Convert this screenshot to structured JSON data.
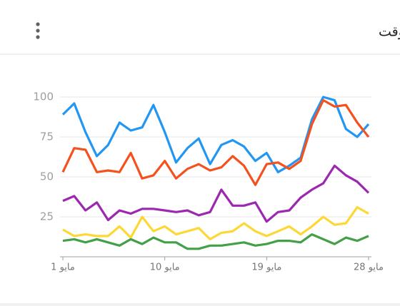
{
  "chart_data": {
    "type": "line",
    "title": "مستوى الاهتمام على مدار الوقت",
    "categories": [
      "1 مايو",
      null,
      null,
      null,
      null,
      null,
      null,
      null,
      null,
      "10 مايو",
      null,
      null,
      null,
      null,
      null,
      null,
      null,
      null,
      "19 مايو",
      null,
      null,
      null,
      null,
      null,
      null,
      null,
      null,
      "28 مايو"
    ],
    "series": [
      {
        "color": "#2196f3",
        "values": [
          89,
          96,
          78,
          63,
          70,
          84,
          79,
          81,
          95,
          78,
          59,
          68,
          74,
          58,
          70,
          73,
          69,
          60,
          65,
          53,
          57,
          62,
          86,
          100,
          98,
          80,
          75,
          83
        ]
      },
      {
        "color": "#f4511e",
        "values": [
          53,
          68,
          67,
          53,
          54,
          53,
          65,
          49,
          51,
          60,
          49,
          55,
          58,
          54,
          56,
          63,
          57,
          45,
          58,
          59,
          55,
          60,
          83,
          98,
          94,
          95,
          84,
          75
        ]
      },
      {
        "color": "#9c27b0",
        "values": [
          35,
          38,
          29,
          34,
          23,
          29,
          27,
          30,
          30,
          29,
          28,
          29,
          26,
          28,
          42,
          32,
          32,
          34,
          22,
          28,
          29,
          37,
          42,
          46,
          57,
          51,
          47,
          40
        ]
      },
      {
        "color": "#fdd835",
        "values": [
          17,
          13,
          14,
          13,
          13,
          19,
          12,
          25,
          16,
          19,
          14,
          16,
          18,
          11,
          15,
          16,
          21,
          16,
          13,
          16,
          19,
          14,
          19,
          25,
          20,
          21,
          31,
          27
        ]
      },
      {
        "color": "#43a047",
        "values": [
          10,
          11,
          9,
          11,
          9,
          7,
          11,
          8,
          12,
          9,
          9,
          5,
          5,
          7,
          7,
          8,
          9,
          7,
          8,
          10,
          10,
          9,
          14,
          11,
          8,
          12,
          10,
          13
        ]
      }
    ],
    "ylim": [
      0,
      100
    ],
    "yticks": [
      25,
      50,
      75,
      100
    ],
    "grid": true
  }
}
